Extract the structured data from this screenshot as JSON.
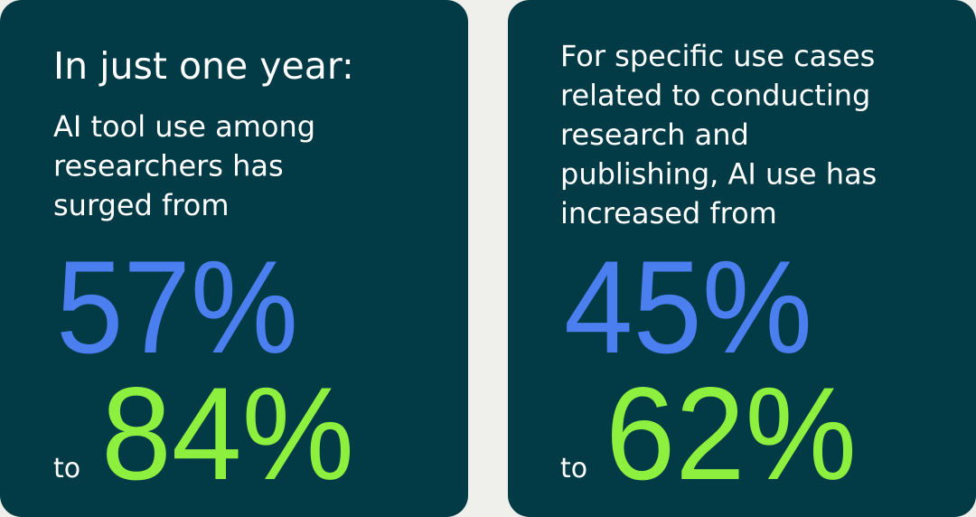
{
  "cards": [
    {
      "heading": "In just one year:",
      "text_lines": [
        "AI tool use among",
        "researchers has",
        "surged from"
      ],
      "from": "57%",
      "to_word": "to",
      "to": "84%"
    },
    {
      "text_lines": [
        "For specific use cases",
        "related to conducting",
        "research and",
        "publishing, AI use has",
        "increased from"
      ],
      "from": "45%",
      "to_word": "to",
      "to": "62%"
    }
  ]
}
